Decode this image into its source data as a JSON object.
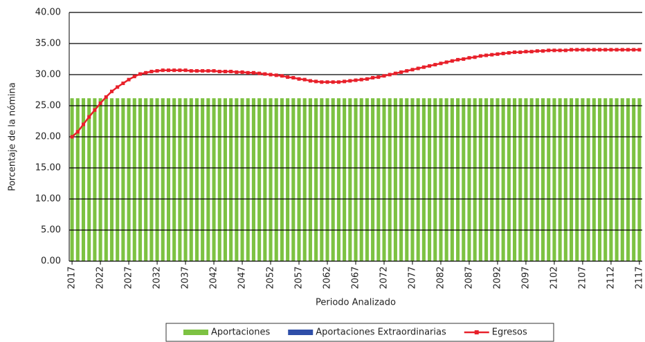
{
  "chart_data": {
    "type": "bar",
    "y_label": "Porcentaje de la nómina",
    "x_label": "Periodo Analizado",
    "categories": [
      "2017",
      null,
      null,
      null,
      null,
      "2022",
      null,
      null,
      null,
      null,
      "2027",
      null,
      null,
      null,
      null,
      "2032",
      null,
      null,
      null,
      null,
      "2037",
      null,
      null,
      null,
      null,
      "2042",
      null,
      null,
      null,
      null,
      "2047",
      null,
      null,
      null,
      null,
      "2052",
      null,
      null,
      null,
      null,
      "2057",
      null,
      null,
      null,
      null,
      "2062",
      null,
      null,
      null,
      null,
      "2067",
      null,
      null,
      null,
      null,
      "2072",
      null,
      null,
      null,
      null,
      "2077",
      null,
      null,
      null,
      null,
      "2082",
      null,
      null,
      null,
      null,
      "2087",
      null,
      null,
      null,
      null,
      "2092",
      null,
      null,
      null,
      null,
      "2097",
      null,
      null,
      null,
      null,
      "2102",
      null,
      null,
      null,
      null,
      "2107",
      null,
      null,
      null,
      null,
      "2112",
      null,
      null,
      null,
      null,
      "2117"
    ],
    "series": [
      {
        "name": "Aportaciones",
        "color": "#7dc242",
        "values": [
          26.2,
          26.2,
          26.2,
          26.2,
          26.2,
          26.2,
          26.2,
          26.2,
          26.2,
          26.2,
          26.2,
          26.2,
          26.2,
          26.2,
          26.2,
          26.2,
          26.2,
          26.2,
          26.2,
          26.2,
          26.2,
          26.2,
          26.2,
          26.2,
          26.2,
          26.2,
          26.2,
          26.2,
          26.2,
          26.2,
          26.2,
          26.2,
          26.2,
          26.2,
          26.2,
          26.2,
          26.2,
          26.2,
          26.2,
          26.2,
          26.2,
          26.2,
          26.2,
          26.2,
          26.2,
          26.2,
          26.2,
          26.2,
          26.2,
          26.2,
          26.2,
          26.2,
          26.2,
          26.2,
          26.2,
          26.2,
          26.2,
          26.2,
          26.2,
          26.2,
          26.2,
          26.2,
          26.2,
          26.2,
          26.2,
          26.2,
          26.2,
          26.2,
          26.2,
          26.2,
          26.2,
          26.2,
          26.2,
          26.2,
          26.2,
          26.2,
          26.2,
          26.2,
          26.2,
          26.2,
          26.2,
          26.2,
          26.2,
          26.2,
          26.2,
          26.2,
          26.2,
          26.2,
          26.2,
          26.2,
          26.2,
          26.2,
          26.2,
          26.2,
          26.2,
          26.2,
          26.2,
          26.2,
          26.2,
          26.2,
          26.2
        ]
      },
      {
        "name": "Aportaciones Extraordinarias",
        "color": "#2e4ea8",
        "values": [
          0,
          0,
          0,
          0,
          0,
          0,
          0,
          0,
          0,
          0,
          0,
          0,
          0,
          0,
          0,
          0,
          0,
          0,
          0,
          0,
          0,
          0,
          0,
          0,
          0,
          0,
          0,
          0,
          0,
          0,
          0,
          0,
          0,
          0,
          0,
          0,
          0,
          0,
          0,
          0,
          0,
          0,
          0,
          0,
          0,
          0,
          0,
          0,
          0,
          0,
          0,
          0,
          0,
          0,
          0,
          0,
          0,
          0,
          0,
          0,
          0,
          0,
          0,
          0,
          0,
          0,
          0,
          0,
          0,
          0,
          0,
          0,
          0,
          0,
          0,
          0,
          0,
          0,
          0,
          0,
          0,
          0,
          0,
          0,
          0,
          0,
          0,
          0,
          0,
          0,
          0,
          0,
          0,
          0,
          0,
          0,
          0,
          0,
          0,
          0,
          0
        ]
      },
      {
        "name": "Egresos",
        "color": "#e8202a",
        "type": "line",
        "values": [
          20.0,
          20.8,
          22.0,
          23.2,
          24.3,
          25.4,
          26.4,
          27.3,
          28.0,
          28.6,
          29.2,
          29.7,
          30.1,
          30.3,
          30.5,
          30.6,
          30.7,
          30.7,
          30.7,
          30.7,
          30.7,
          30.6,
          30.6,
          30.6,
          30.6,
          30.6,
          30.5,
          30.5,
          30.5,
          30.4,
          30.4,
          30.3,
          30.3,
          30.2,
          30.1,
          30.0,
          29.9,
          29.8,
          29.6,
          29.5,
          29.3,
          29.2,
          29.0,
          28.9,
          28.8,
          28.8,
          28.8,
          28.8,
          28.9,
          29.0,
          29.1,
          29.2,
          29.3,
          29.5,
          29.6,
          29.8,
          30.0,
          30.2,
          30.4,
          30.6,
          30.8,
          31.0,
          31.2,
          31.4,
          31.6,
          31.8,
          32.0,
          32.2,
          32.4,
          32.5,
          32.7,
          32.8,
          33.0,
          33.1,
          33.2,
          33.3,
          33.4,
          33.5,
          33.6,
          33.6,
          33.7,
          33.7,
          33.8,
          33.8,
          33.9,
          33.9,
          33.9,
          33.9,
          34.0,
          34.0,
          34.0,
          34.0,
          34.0,
          34.0,
          34.0,
          34.0,
          34.0,
          34.0,
          34.0,
          34.0,
          34.0
        ]
      }
    ],
    "ylim": [
      0,
      40
    ],
    "yticks": [
      {
        "value": 0,
        "label": "0.00"
      },
      {
        "value": 5,
        "label": "5.00"
      },
      {
        "value": 10,
        "label": "10.00"
      },
      {
        "value": 15,
        "label": "15.00"
      },
      {
        "value": 20,
        "label": "20.00"
      },
      {
        "value": 25,
        "label": "25.00"
      },
      {
        "value": 30,
        "label": "30.00"
      },
      {
        "value": 35,
        "label": "35.00"
      },
      {
        "value": 40,
        "label": "40.00"
      }
    ],
    "grid": true,
    "legend": "bottom"
  }
}
